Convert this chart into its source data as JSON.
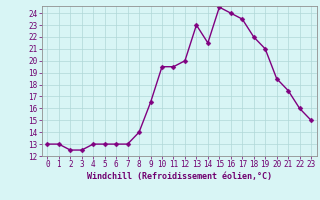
{
  "x": [
    0,
    1,
    2,
    3,
    4,
    5,
    6,
    7,
    8,
    9,
    10,
    11,
    12,
    13,
    14,
    15,
    16,
    17,
    18,
    19,
    20,
    21,
    22,
    23
  ],
  "y": [
    13,
    13,
    12.5,
    12.5,
    13,
    13,
    13,
    13,
    14,
    16.5,
    19.5,
    19.5,
    20,
    23,
    21.5,
    24.5,
    24,
    23.5,
    22,
    21,
    18.5,
    17.5,
    16,
    15
  ],
  "line_color": "#800080",
  "marker_color": "#800080",
  "bg_color": "#d8f5f5",
  "grid_color": "#b0d8d8",
  "xlabel": "Windchill (Refroidissement éolien,°C)",
  "ylim": [
    12,
    24.6
  ],
  "xlim": [
    -0.5,
    23.5
  ],
  "yticks": [
    12,
    13,
    14,
    15,
    16,
    17,
    18,
    19,
    20,
    21,
    22,
    23,
    24
  ],
  "xticks": [
    0,
    1,
    2,
    3,
    4,
    5,
    6,
    7,
    8,
    9,
    10,
    11,
    12,
    13,
    14,
    15,
    16,
    17,
    18,
    19,
    20,
    21,
    22,
    23
  ],
  "tick_fontsize": 5.5,
  "xlabel_fontsize": 6,
  "marker_size": 2.5,
  "line_width": 1.0
}
